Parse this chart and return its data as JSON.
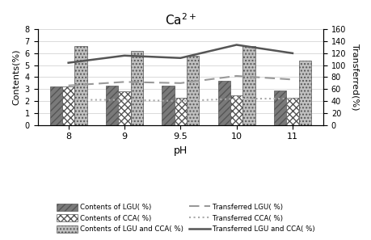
{
  "title": "Ca$^{2+}$",
  "xlabel": "pH",
  "ylabel_left": "Contents(%)",
  "ylabel_right": "Transferred(%)",
  "x_labels": [
    "8",
    "9",
    "9.5",
    "10",
    "11"
  ],
  "x_positions": [
    0,
    1,
    2,
    3,
    4
  ],
  "bar_width": 0.22,
  "contents_LGU": [
    3.2,
    3.3,
    3.3,
    3.7,
    2.9
  ],
  "contents_CCA": [
    3.2,
    2.8,
    2.3,
    2.5,
    2.3
  ],
  "contents_LGU_CCA": [
    6.6,
    6.2,
    5.8,
    6.6,
    5.4
  ],
  "transferred_LGU_right": [
    66,
    72,
    70,
    82,
    76
  ],
  "transferred_CCA_right": [
    42,
    42,
    40,
    44,
    44
  ],
  "transferred_LGU_CCA_right": [
    104,
    116,
    112,
    134,
    120
  ],
  "ylim_left": [
    0,
    8
  ],
  "ylim_right": [
    0,
    160
  ],
  "yticks_left": [
    0,
    1,
    2,
    3,
    4,
    5,
    6,
    7,
    8
  ],
  "yticks_right": [
    0,
    20,
    40,
    60,
    80,
    100,
    120,
    140,
    160
  ],
  "legend_labels": [
    "Contents of LGU（ %）",
    "Contents of CCA（ %）",
    "Contents of LGU and CCA（ %）",
    "Transferred LGU（ %）",
    "Transferred CCA（ %）",
    "Transferred LGU and CCA（ %）"
  ]
}
